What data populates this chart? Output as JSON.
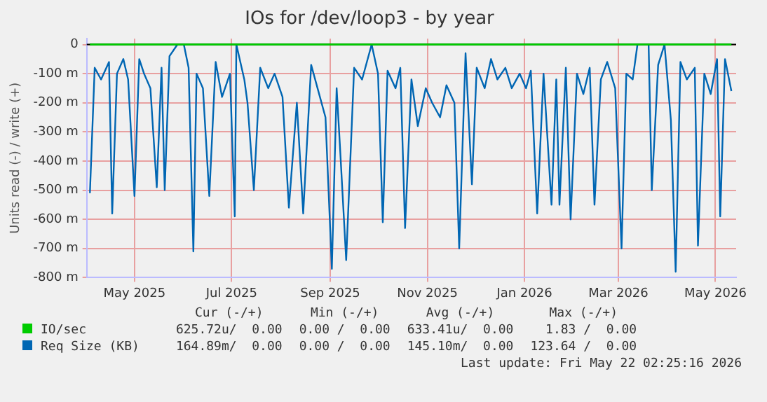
{
  "chart_data": {
    "type": "line",
    "title": "IOs for /dev/loop3 - by year",
    "ylabel": "Units read (-) / write (+)",
    "xlim": [
      "2025-04-01",
      "2026-05-14"
    ],
    "xticks": [
      {
        "value": "2025-05-01",
        "label": "May 2025"
      },
      {
        "value": "2025-07-01",
        "label": "Jul 2025"
      },
      {
        "value": "2025-09-01",
        "label": "Sep 2025"
      },
      {
        "value": "2025-11-01",
        "label": "Nov 2025"
      },
      {
        "value": "2026-01-01",
        "label": "Jan 2026"
      },
      {
        "value": "2026-03-01",
        "label": "Mar 2026"
      },
      {
        "value": "2026-05-01",
        "label": "May 2026"
      }
    ],
    "ylim": [
      -800,
      20
    ],
    "yticks": [
      {
        "value": -800,
        "label": "-800 m"
      },
      {
        "value": -700,
        "label": "-700 m"
      },
      {
        "value": -600,
        "label": "-600 m"
      },
      {
        "value": -500,
        "label": "-500 m"
      },
      {
        "value": -400,
        "label": "-400 m"
      },
      {
        "value": -300,
        "label": "-300 m"
      },
      {
        "value": -200,
        "label": "-200 m"
      },
      {
        "value": -100,
        "label": "-100 m"
      },
      0
    ],
    "grid": true,
    "legend": "bottom",
    "marker": "none",
    "line_style": "solid",
    "ref_lines": [
      {
        "axis": "y",
        "value": 0,
        "color": "#000000"
      }
    ],
    "series": [
      {
        "name": "IO/sec",
        "color": "#00cc00",
        "x": [
          "2025-04-03",
          "2026-05-11"
        ],
        "values": [
          0,
          0
        ]
      },
      {
        "name": "Req Size (KB)",
        "color": "#0066b3",
        "x": [
          "2025-04-03",
          "2025-04-06",
          "2025-04-10",
          "2025-04-15",
          "2025-04-17",
          "2025-04-20",
          "2025-04-24",
          "2025-04-27",
          "2025-05-01",
          "2025-05-04",
          "2025-05-07",
          "2025-05-11",
          "2025-05-15",
          "2025-05-18",
          "2025-05-20",
          "2025-05-23",
          "2025-05-28",
          "2025-06-01",
          "2025-06-04",
          "2025-06-07",
          "2025-06-09",
          "2025-06-13",
          "2025-06-17",
          "2025-06-21",
          "2025-06-25",
          "2025-06-30",
          "2025-07-03",
          "2025-07-04",
          "2025-07-09",
          "2025-07-11",
          "2025-07-15",
          "2025-07-19",
          "2025-07-24",
          "2025-07-28",
          "2025-08-02",
          "2025-08-06",
          "2025-08-11",
          "2025-08-15",
          "2025-08-20",
          "2025-08-24",
          "2025-08-29",
          "2025-09-02",
          "2025-09-05",
          "2025-09-07",
          "2025-09-11",
          "2025-09-16",
          "2025-09-21",
          "2025-09-27",
          "2025-10-01",
          "2025-10-04",
          "2025-10-07",
          "2025-10-12",
          "2025-10-15",
          "2025-10-18",
          "2025-10-22",
          "2025-10-26",
          "2025-10-31",
          "2025-11-04",
          "2025-11-09",
          "2025-11-13",
          "2025-11-18",
          "2025-11-21",
          "2025-11-25",
          "2025-11-29",
          "2025-12-02",
          "2025-12-07",
          "2025-12-11",
          "2025-12-15",
          "2025-12-20",
          "2025-12-24",
          "2025-12-29",
          "2026-01-02",
          "2026-01-05",
          "2026-01-09",
          "2026-01-13",
          "2026-01-18",
          "2026-01-21",
          "2026-01-23",
          "2026-01-27",
          "2026-01-30",
          "2026-02-03",
          "2026-02-07",
          "2026-02-11",
          "2026-02-14",
          "2026-02-18",
          "2026-02-22",
          "2026-02-27",
          "2026-03-03",
          "2026-03-06",
          "2026-03-10",
          "2026-03-13",
          "2026-03-17",
          "2026-03-20",
          "2026-03-22",
          "2026-03-26",
          "2026-03-30",
          "2026-04-03",
          "2026-04-06",
          "2026-04-09",
          "2026-04-13",
          "2026-04-18",
          "2026-04-20",
          "2026-04-24",
          "2026-04-28",
          "2026-05-02",
          "2026-05-04",
          "2026-05-07",
          "2026-05-11"
        ],
        "values": [
          -510,
          -80,
          -120,
          -60,
          -580,
          -100,
          -50,
          -120,
          -520,
          -50,
          -100,
          -150,
          -490,
          -80,
          -500,
          -40,
          0,
          0,
          -80,
          -710,
          -100,
          -150,
          -520,
          -60,
          -180,
          -100,
          -590,
          0,
          -120,
          -200,
          -500,
          -80,
          -150,
          -100,
          -180,
          -560,
          -200,
          -580,
          -70,
          -150,
          -250,
          -770,
          -150,
          -340,
          -740,
          -80,
          -120,
          0,
          -100,
          -610,
          -90,
          -150,
          -80,
          -630,
          -120,
          -280,
          -150,
          -200,
          -250,
          -140,
          -200,
          -700,
          -30,
          -480,
          -80,
          -150,
          -50,
          -120,
          -80,
          -150,
          -100,
          -150,
          -90,
          -580,
          -100,
          -550,
          -120,
          -550,
          -80,
          -600,
          -100,
          -170,
          -80,
          -550,
          -120,
          -60,
          -150,
          -700,
          -100,
          -120,
          0,
          0,
          0,
          -500,
          -70,
          0,
          -260,
          -780,
          -60,
          -120,
          -80,
          -690,
          -100,
          -170,
          -50,
          -590,
          -50,
          -160
        ]
      }
    ],
    "annotations": [
      "Cur (-/+)",
      "Min (-/+)",
      "Avg (-/+)",
      "Max (-/+)",
      "625.72u/  0.00",
      "0.00 /  0.00",
      "633.41u/  0.00",
      "1.83 /  0.00",
      "164.89m/  0.00",
      "0.00 /  0.00",
      "145.10m/  0.00",
      "123.64 /  0.00",
      "Last update: Fri May 22 02:25:16 2026"
    ]
  }
}
